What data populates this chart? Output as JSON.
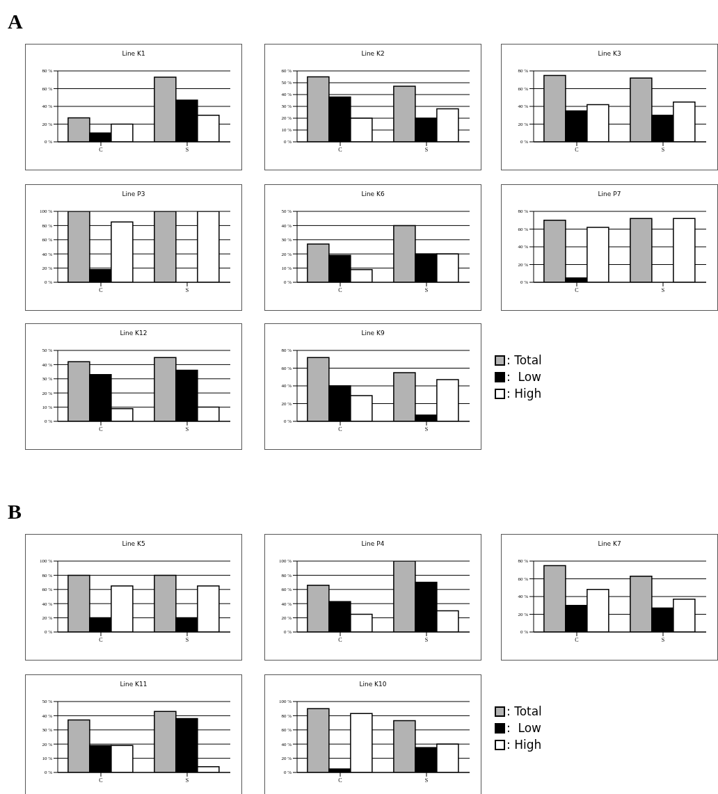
{
  "chart_data": [
    {
      "type": "bar",
      "title": "Line K1",
      "annotations": [
        "A"
      ],
      "categories": [
        "C",
        "S"
      ],
      "series": [
        {
          "color": "#b3b3b3",
          "values": [
            27,
            73
          ]
        },
        {
          "color": "#000000",
          "values": [
            10,
            47
          ]
        },
        {
          "color": "#ffffff",
          "values": [
            20,
            30
          ]
        }
      ],
      "ylim": [
        0,
        80
      ],
      "yticks": [
        {
          "value": 0,
          "label": "0 %"
        },
        {
          "value": 20,
          "label": "20 %"
        },
        {
          "value": 40,
          "label": "40 %"
        },
        {
          "value": 60,
          "label": "60 %"
        },
        {
          "value": 80,
          "label": "80 %"
        }
      ],
      "grid": "y",
      "legend": false
    },
    {
      "type": "bar",
      "title": "Line K2",
      "categories": [
        "C",
        "S"
      ],
      "series": [
        {
          "color": "#b3b3b3",
          "values": [
            55,
            47
          ]
        },
        {
          "color": "#000000",
          "values": [
            38,
            20
          ]
        },
        {
          "color": "#ffffff",
          "values": [
            20,
            28
          ]
        }
      ],
      "ylim": [
        0,
        60
      ],
      "yticks": [
        {
          "value": 0,
          "label": "0 %"
        },
        {
          "value": 10,
          "label": "10 %"
        },
        {
          "value": 20,
          "label": "20 %"
        },
        {
          "value": 30,
          "label": "30 %"
        },
        {
          "value": 40,
          "label": "40 %"
        },
        {
          "value": 50,
          "label": "50 %"
        },
        {
          "value": 60,
          "label": "60 %"
        }
      ],
      "grid": "y",
      "legend": false
    },
    {
      "type": "bar",
      "title": "Line K3",
      "categories": [
        "C",
        "S"
      ],
      "series": [
        {
          "color": "#b3b3b3",
          "values": [
            75,
            72
          ]
        },
        {
          "color": "#000000",
          "values": [
            35,
            30
          ]
        },
        {
          "color": "#ffffff",
          "values": [
            42,
            45
          ]
        }
      ],
      "ylim": [
        0,
        80
      ],
      "yticks": [
        {
          "value": 0,
          "label": "0 %"
        },
        {
          "value": 20,
          "label": "20 %"
        },
        {
          "value": 40,
          "label": "40 %"
        },
        {
          "value": 60,
          "label": "60 %"
        },
        {
          "value": 80,
          "label": "80 %"
        }
      ],
      "grid": "y",
      "legend": false
    },
    {
      "type": "bar",
      "title": "Line P3",
      "categories": [
        "C",
        "S"
      ],
      "series": [
        {
          "color": "#b3b3b3",
          "values": [
            100,
            100
          ]
        },
        {
          "color": "#000000",
          "values": [
            18,
            0
          ]
        },
        {
          "color": "#ffffff",
          "values": [
            85,
            100
          ]
        }
      ],
      "ylim": [
        0,
        100
      ],
      "yticks": [
        {
          "value": 0,
          "label": "0 %"
        },
        {
          "value": 20,
          "label": "20 %"
        },
        {
          "value": 40,
          "label": "40 %"
        },
        {
          "value": 60,
          "label": "60 %"
        },
        {
          "value": 80,
          "label": "80 %"
        },
        {
          "value": 100,
          "label": "100 %"
        }
      ],
      "grid": "y",
      "legend": false
    },
    {
      "type": "bar",
      "title": "Line K6",
      "categories": [
        "C",
        "S"
      ],
      "series": [
        {
          "color": "#b3b3b3",
          "values": [
            27,
            40
          ]
        },
        {
          "color": "#000000",
          "values": [
            19,
            20
          ]
        },
        {
          "color": "#ffffff",
          "values": [
            9,
            20
          ]
        }
      ],
      "ylim": [
        0,
        50
      ],
      "yticks": [
        {
          "value": 0,
          "label": "0 %"
        },
        {
          "value": 10,
          "label": "10 %"
        },
        {
          "value": 20,
          "label": "20 %"
        },
        {
          "value": 30,
          "label": "30 %"
        },
        {
          "value": 40,
          "label": "40 %"
        },
        {
          "value": 50,
          "label": "50 %"
        }
      ],
      "grid": "y",
      "legend": false
    },
    {
      "type": "bar",
      "title": "Line P7",
      "categories": [
        "C",
        "S"
      ],
      "series": [
        {
          "color": "#b3b3b3",
          "values": [
            70,
            72
          ]
        },
        {
          "color": "#000000",
          "values": [
            5,
            0
          ]
        },
        {
          "color": "#ffffff",
          "values": [
            62,
            72
          ]
        }
      ],
      "ylim": [
        0,
        80
      ],
      "yticks": [
        {
          "value": 0,
          "label": "0 %"
        },
        {
          "value": 20,
          "label": "20 %"
        },
        {
          "value": 40,
          "label": "40 %"
        },
        {
          "value": 60,
          "label": "60 %"
        },
        {
          "value": 80,
          "label": "80 %"
        }
      ],
      "grid": "y",
      "legend": false
    },
    {
      "type": "bar",
      "title": "Line K12",
      "categories": [
        "C",
        "S"
      ],
      "series": [
        {
          "color": "#b3b3b3",
          "values": [
            42,
            45
          ]
        },
        {
          "color": "#000000",
          "values": [
            33,
            36
          ]
        },
        {
          "color": "#ffffff",
          "values": [
            9,
            10
          ]
        }
      ],
      "ylim": [
        0,
        50
      ],
      "yticks": [
        {
          "value": 0,
          "label": "0 %"
        },
        {
          "value": 10,
          "label": "10 %"
        },
        {
          "value": 20,
          "label": "20 %"
        },
        {
          "value": 30,
          "label": "30 %"
        },
        {
          "value": 40,
          "label": "40 %"
        },
        {
          "value": 50,
          "label": "50 %"
        }
      ],
      "grid": "y",
      "legend": false
    },
    {
      "type": "bar",
      "title": "Line K9",
      "categories": [
        "C",
        "S"
      ],
      "series": [
        {
          "name": ": Total",
          "color": "#b3b3b3",
          "values": [
            72,
            55
          ]
        },
        {
          "name": ":  Low",
          "color": "#000000",
          "values": [
            40,
            7
          ]
        },
        {
          "name": ": High",
          "color": "#ffffff",
          "values": [
            29,
            47
          ]
        }
      ],
      "ylim": [
        0,
        80
      ],
      "yticks": [
        {
          "value": 0,
          "label": "0 %"
        },
        {
          "value": 20,
          "label": "20 %"
        },
        {
          "value": 40,
          "label": "40 %"
        },
        {
          "value": 60,
          "label": "60 %"
        },
        {
          "value": 80,
          "label": "80 %"
        }
      ],
      "grid": "y",
      "legend": "right"
    },
    {
      "type": "bar",
      "title": "Line K5",
      "annotations": [
        "B"
      ],
      "categories": [
        "C",
        "S"
      ],
      "series": [
        {
          "color": "#b3b3b3",
          "values": [
            80,
            80
          ]
        },
        {
          "color": "#000000",
          "values": [
            20,
            20
          ]
        },
        {
          "color": "#ffffff",
          "values": [
            65,
            65
          ]
        }
      ],
      "ylim": [
        0,
        100
      ],
      "yticks": [
        {
          "value": 0,
          "label": "0 %"
        },
        {
          "value": 20,
          "label": "20 %"
        },
        {
          "value": 40,
          "label": "40 %"
        },
        {
          "value": 60,
          "label": "60 %"
        },
        {
          "value": 80,
          "label": "80 %"
        },
        {
          "value": 100,
          "label": "100 %"
        }
      ],
      "grid": "y",
      "legend": false
    },
    {
      "type": "bar",
      "title": "Line P4",
      "categories": [
        "C",
        "S"
      ],
      "series": [
        {
          "color": "#b3b3b3",
          "values": [
            66,
            100
          ]
        },
        {
          "color": "#000000",
          "values": [
            43,
            70
          ]
        },
        {
          "color": "#ffffff",
          "values": [
            25,
            30
          ]
        }
      ],
      "ylim": [
        0,
        100
      ],
      "yticks": [
        {
          "value": 0,
          "label": "0 %"
        },
        {
          "value": 20,
          "label": "20 %"
        },
        {
          "value": 40,
          "label": "40 %"
        },
        {
          "value": 60,
          "label": "60 %"
        },
        {
          "value": 80,
          "label": "80 %"
        },
        {
          "value": 100,
          "label": "100 %"
        }
      ],
      "grid": "y",
      "legend": false
    },
    {
      "type": "bar",
      "title": "Line K7",
      "categories": [
        "C",
        "S"
      ],
      "series": [
        {
          "color": "#b3b3b3",
          "values": [
            75,
            63
          ]
        },
        {
          "color": "#000000",
          "values": [
            30,
            27
          ]
        },
        {
          "color": "#ffffff",
          "values": [
            48,
            37
          ]
        }
      ],
      "ylim": [
        0,
        80
      ],
      "yticks": [
        {
          "value": 0,
          "label": "0 %"
        },
        {
          "value": 20,
          "label": "20 %"
        },
        {
          "value": 40,
          "label": "40 %"
        },
        {
          "value": 60,
          "label": "60 %"
        },
        {
          "value": 80,
          "label": "80 %"
        }
      ],
      "grid": "y",
      "legend": false
    },
    {
      "type": "bar",
      "title": "Line K11",
      "categories": [
        "C",
        "S"
      ],
      "series": [
        {
          "color": "#b3b3b3",
          "values": [
            37,
            43
          ]
        },
        {
          "color": "#000000",
          "values": [
            19,
            38
          ]
        },
        {
          "color": "#ffffff",
          "values": [
            19,
            4
          ]
        }
      ],
      "ylim": [
        0,
        50
      ],
      "yticks": [
        {
          "value": 0,
          "label": "0 %"
        },
        {
          "value": 10,
          "label": "10 %"
        },
        {
          "value": 20,
          "label": "20 %"
        },
        {
          "value": 30,
          "label": "30 %"
        },
        {
          "value": 40,
          "label": "40 %"
        },
        {
          "value": 50,
          "label": "50 %"
        }
      ],
      "grid": "y",
      "legend": false
    },
    {
      "type": "bar",
      "title": "Line K10",
      "categories": [
        "C",
        "S"
      ],
      "series": [
        {
          "name": ": Total",
          "color": "#b3b3b3",
          "values": [
            90,
            73
          ]
        },
        {
          "name": ":  Low",
          "color": "#000000",
          "values": [
            5,
            35
          ]
        },
        {
          "name": ": High",
          "color": "#ffffff",
          "values": [
            83,
            40
          ]
        }
      ],
      "ylim": [
        0,
        100
      ],
      "yticks": [
        {
          "value": 0,
          "label": "0 %"
        },
        {
          "value": 20,
          "label": "20 %"
        },
        {
          "value": 40,
          "label": "40 %"
        },
        {
          "value": 60,
          "label": "60 %"
        },
        {
          "value": 80,
          "label": "80 %"
        },
        {
          "value": 100,
          "label": "100 %"
        }
      ],
      "grid": "y",
      "legend": "right"
    }
  ]
}
